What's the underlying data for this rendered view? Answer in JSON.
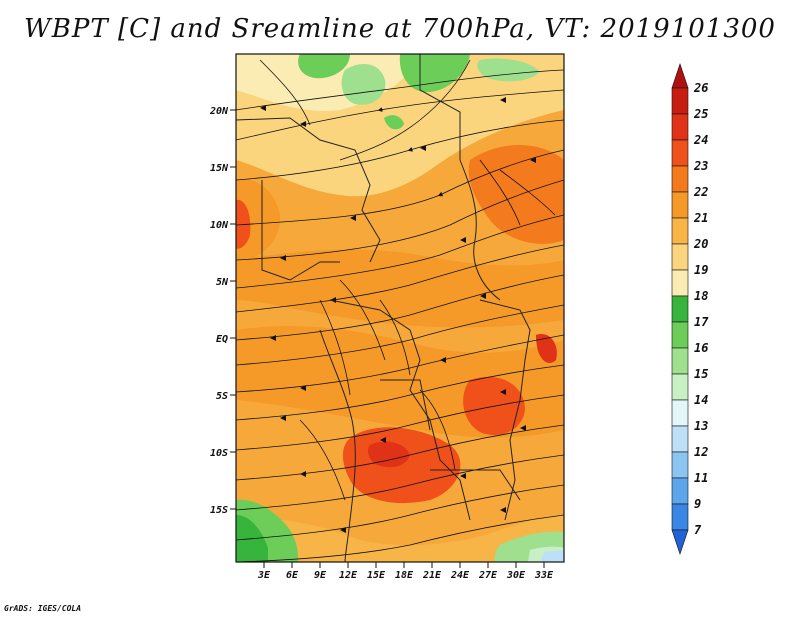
{
  "title": "WBPT [C] and Sreamline at 700hPa, VT: 2019101300",
  "credit": "GrADS: IGES/COLA",
  "map": {
    "lat_labels": [
      "20N",
      "15N",
      "10N",
      "5N",
      "EQ",
      "5S",
      "10S",
      "15S"
    ],
    "lon_labels": [
      "3E",
      "6E",
      "9E",
      "12E",
      "15E",
      "18E",
      "21E",
      "24E",
      "27E",
      "30E",
      "33E"
    ]
  },
  "colorbar": {
    "labels": [
      "26",
      "25",
      "24",
      "23",
      "22",
      "21",
      "20",
      "19",
      "18",
      "17",
      "16",
      "15",
      "14",
      "13",
      "12",
      "11",
      "9",
      "7"
    ],
    "colors": [
      "#b01010",
      "#c81e12",
      "#e03216",
      "#f0501a",
      "#f47a1e",
      "#f59a28",
      "#f7b548",
      "#fad57e",
      "#faecb2",
      "#36b43c",
      "#6ccd58",
      "#9ee08e",
      "#c8f0c4",
      "#e4f6fa",
      "#bddff7",
      "#8cc5f2",
      "#5ca6ec",
      "#3a86e3",
      "#2262d8"
    ]
  }
}
